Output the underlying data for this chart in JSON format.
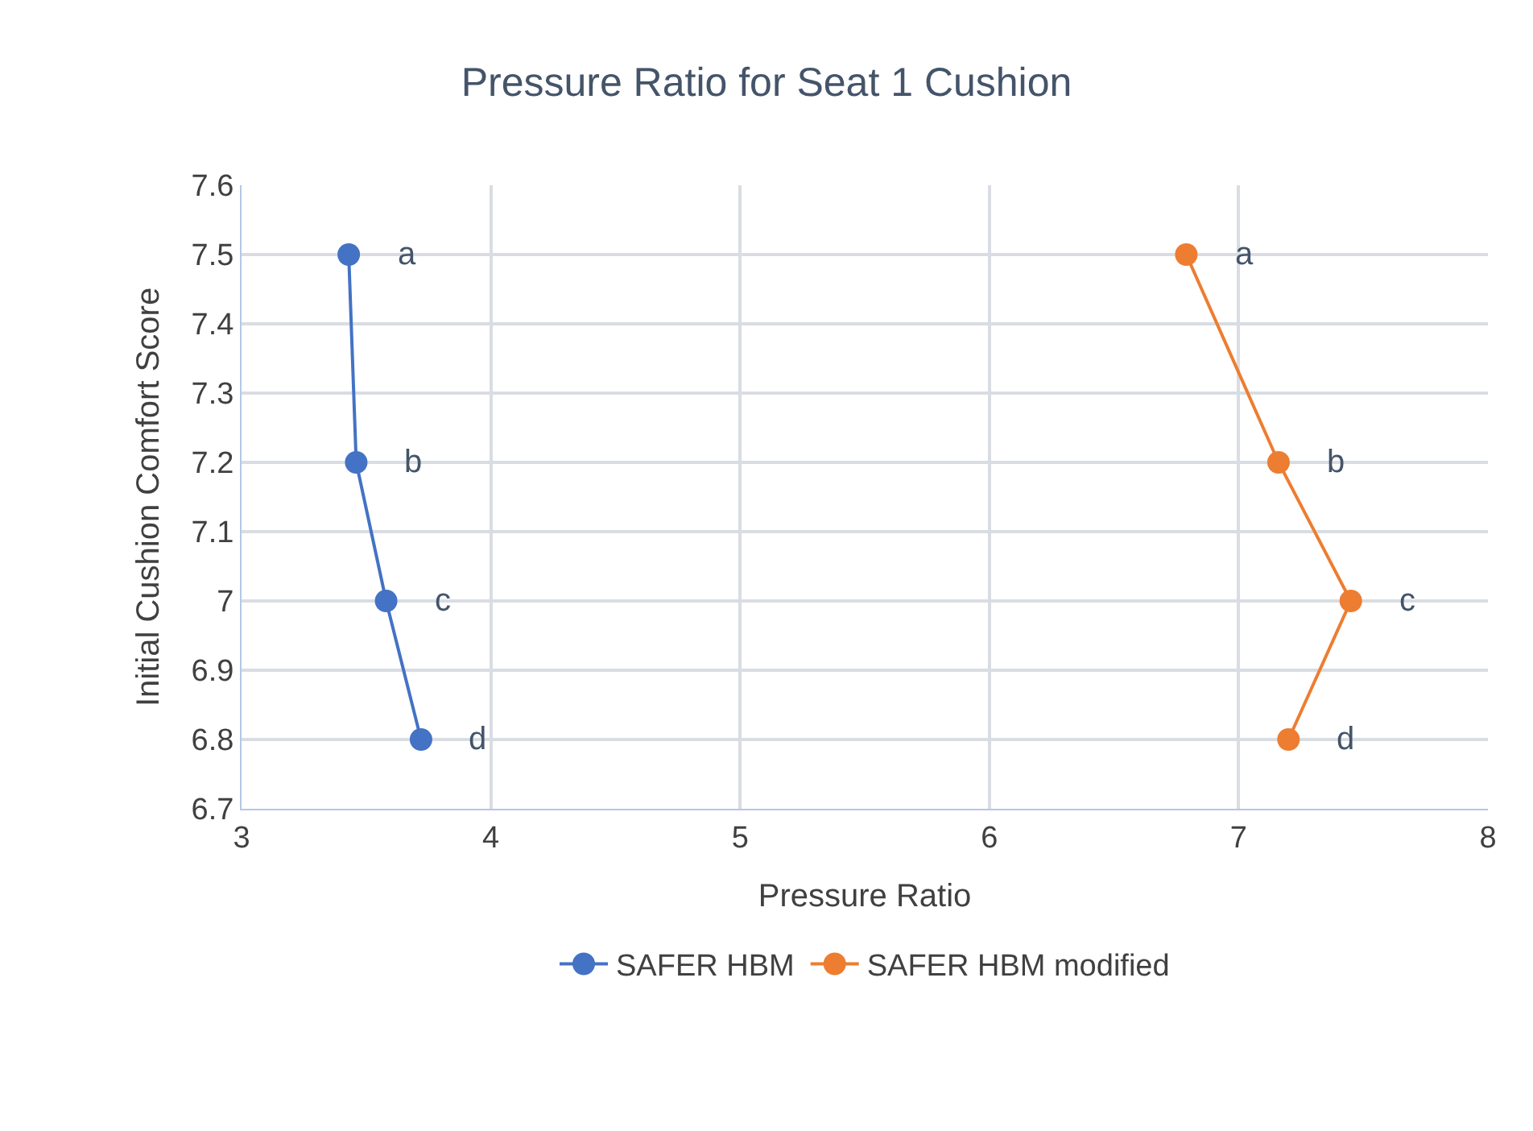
{
  "chart_data": {
    "type": "line",
    "title": "Pressure Ratio for Seat 1 Cushion",
    "xlabel": "Pressure Ratio",
    "ylabel": "Initial Cushion Comfort Score",
    "series": [
      {
        "name": "SAFER HBM",
        "color": "#4472c4",
        "x": [
          3.43,
          3.46,
          3.58,
          3.72
        ],
        "values": [
          7.5,
          7.2,
          7.0,
          6.8
        ]
      },
      {
        "name": "SAFER HBM modified",
        "color": "#ed7d31",
        "x": [
          6.79,
          7.16,
          7.45,
          7.2
        ],
        "values": [
          7.5,
          7.2,
          7.0,
          6.8
        ]
      }
    ],
    "annotations": [
      {
        "text": "a",
        "x": 3.43,
        "y": 7.5
      },
      {
        "text": "b",
        "x": 3.46,
        "y": 7.2
      },
      {
        "text": "c",
        "x": 3.58,
        "y": 7.0
      },
      {
        "text": "d",
        "x": 3.72,
        "y": 6.8
      },
      {
        "text": "a",
        "x": 6.79,
        "y": 7.5
      },
      {
        "text": "b",
        "x": 7.16,
        "y": 7.2
      },
      {
        "text": "c",
        "x": 7.45,
        "y": 7.0
      },
      {
        "text": "d",
        "x": 7.2,
        "y": 6.8
      }
    ],
    "xlim": [
      3,
      8
    ],
    "xticks": [
      3,
      4,
      5,
      6,
      7,
      8
    ],
    "ylim": [
      6.7,
      7.6
    ],
    "yticks": [
      6.7,
      6.8,
      6.9,
      7,
      7.1,
      7.2,
      7.3,
      7.4,
      7.5,
      7.6
    ],
    "grid": true,
    "legend": "bottom",
    "marker": "circle",
    "line_style": "solid"
  }
}
